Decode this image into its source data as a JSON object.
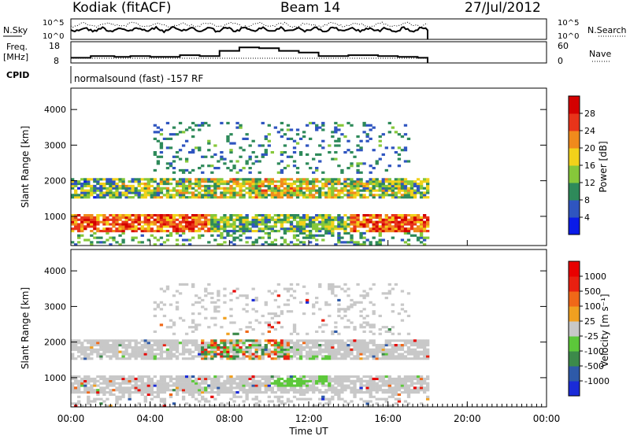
{
  "header": {
    "station": "Kodiak (fitACF)",
    "beam": "Beam 14",
    "date": "27/Jul/2012"
  },
  "top_panels": {
    "nsky_label": "N.Sky",
    "nsearch_label": "N.Search",
    "count_ticks": [
      "10^5",
      "10^0"
    ],
    "freq_label_1": "Freq.",
    "freq_label_2": "[MHz]",
    "freq_ticks": [
      "18",
      "8"
    ],
    "nave_ticks": [
      "60",
      "0"
    ],
    "nave_label": "Nave",
    "cpid_label": "CPID",
    "cpid_text": "normalsound (fast) -157 RF"
  },
  "chart_data": [
    {
      "type": "heatmap",
      "name": "power",
      "ylabel": "Slant Range [km]",
      "ylim": [
        180,
        4600
      ],
      "y_ticks": [
        "1000",
        "2000",
        "3000",
        "4000"
      ],
      "colorbar_label": "Power [dB]",
      "colorbar_ticks": [
        "4",
        "8",
        "12",
        "16",
        "20",
        "24",
        "28"
      ],
      "colorbar_colors": [
        "#0a1be8",
        "#2f55c0",
        "#2e8a5a",
        "#86c83a",
        "#f2d21a",
        "#f08a1c",
        "#e8341a",
        "#d40000"
      ],
      "bands": [
        {
          "range_km": [
            500,
            1050
          ],
          "t_hours": [
            0,
            18
          ],
          "level": "high"
        },
        {
          "range_km": [
            1400,
            2100
          ],
          "t_hours": [
            0,
            18
          ],
          "level": "mid"
        },
        {
          "range_km": [
            2400,
            3600
          ],
          "t_hours": [
            3,
            17
          ],
          "level": "low"
        }
      ]
    },
    {
      "type": "heatmap",
      "name": "velocity",
      "ylabel": "Slant Range [km]",
      "xlabel": "Time UT",
      "ylim": [
        180,
        4600
      ],
      "y_ticks": [
        "1000",
        "2000",
        "3000",
        "4000"
      ],
      "x_ticks": [
        "00:00",
        "04:00",
        "08:00",
        "12:00",
        "16:00",
        "20:00",
        "00:00"
      ],
      "colorbar_label": "Velocity [m s⁻¹]",
      "colorbar_ticks": [
        "1000",
        "500",
        "100",
        "25",
        "-25",
        "-100",
        "-500",
        "-1000"
      ],
      "colorbar_colors": [
        "#1a2bd8",
        "#2e5aa8",
        "#3c8a4a",
        "#5cc83a",
        "#c8c8c8",
        "#f0a020",
        "#f06818",
        "#e82010",
        "#e80000"
      ]
    }
  ]
}
